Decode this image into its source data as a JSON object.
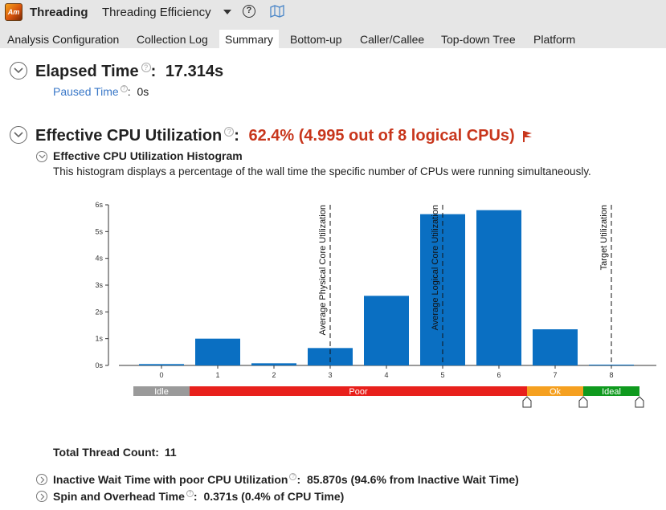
{
  "header": {
    "app_icon_text": "Am",
    "app_name": "Threading",
    "analysis_name": "Threading Efficiency"
  },
  "tabs": [
    {
      "label": "Analysis Configuration",
      "active": false
    },
    {
      "label": "Collection Log",
      "active": false
    },
    {
      "label": "Summary",
      "active": true
    },
    {
      "label": "Bottom-up",
      "active": false
    },
    {
      "label": "Caller/Callee",
      "active": false
    },
    {
      "label": "Top-down Tree",
      "active": false
    },
    {
      "label": "Platform",
      "active": false
    }
  ],
  "elapsed": {
    "label": "Elapsed Time",
    "value": "17.314s",
    "paused_label": "Paused Time",
    "paused_value": "0s"
  },
  "cpu_util": {
    "label": "Effective CPU Utilization",
    "value": "62.4% (4.995 out of 8 logical CPUs)",
    "histogram_title": "Effective CPU Utilization Histogram",
    "histogram_desc": "This histogram displays a percentage of the wall time the specific number of CPUs were running simultaneously."
  },
  "chart_data": {
    "type": "bar",
    "categories": [
      "0",
      "1",
      "2",
      "3",
      "4",
      "5",
      "6",
      "7",
      "8"
    ],
    "values": [
      0.05,
      1.0,
      0.08,
      0.65,
      2.6,
      5.65,
      5.8,
      1.35,
      0.03
    ],
    "ylim": [
      0,
      6
    ],
    "yticks": [
      "0s",
      "1s",
      "2s",
      "3s",
      "4s",
      "5s",
      "6s"
    ],
    "bar_color": "#0a6fc2",
    "markers": [
      {
        "label": "Average Physical Core Utilization",
        "x": 3
      },
      {
        "label": "Average Logical Core Utilization",
        "x": 5
      },
      {
        "label": "Target Utilization",
        "x": 8
      }
    ],
    "zones": [
      {
        "label": "Idle",
        "from": 0,
        "to": 1,
        "color": "#9a9a9a"
      },
      {
        "label": "Poor",
        "from": 1,
        "to": 7,
        "color": "#e8201c"
      },
      {
        "label": "Ok",
        "from": 7,
        "to": 8,
        "color": "#f5a020"
      },
      {
        "label": "Ideal",
        "from": 8,
        "to": 9,
        "color": "#0f9a1e"
      }
    ],
    "sliders": [
      7,
      8,
      9
    ]
  },
  "summary": {
    "thread_count_label": "Total Thread Count:",
    "thread_count_value": "11",
    "inactive_label": "Inactive Wait Time with poor CPU Utilization",
    "inactive_value": "85.870s (94.6% from Inactive Wait Time)",
    "spin_label": "Spin and Overhead Time",
    "spin_value": "0.371s (0.4% of CPU Time)"
  }
}
